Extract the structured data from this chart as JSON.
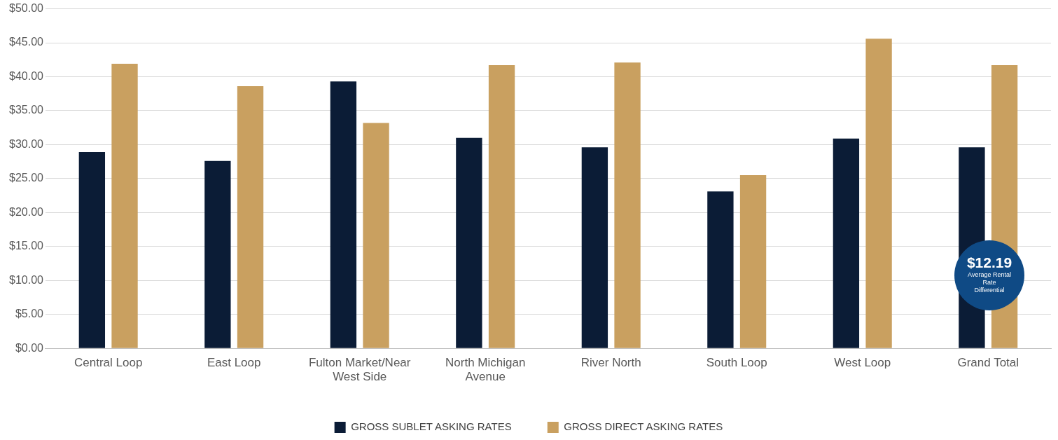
{
  "chart_data": {
    "type": "bar",
    "categories": [
      "Central Loop",
      "East Loop",
      "Fulton Market/Near West Side",
      "North Michigan Avenue",
      "River North",
      "South Loop",
      "West Loop",
      "Grand Total"
    ],
    "series": [
      {
        "name": "GROSS SUBLET ASKING RATES",
        "color": "#0b1c36",
        "values": [
          28.9,
          27.6,
          39.3,
          31.0,
          29.6,
          23.1,
          30.9,
          29.6
        ]
      },
      {
        "name": "GROSS DIRECT ASKING RATES",
        "color": "#c9a060",
        "values": [
          41.9,
          38.6,
          33.2,
          41.7,
          42.1,
          25.5,
          45.6,
          41.7
        ]
      }
    ],
    "ylim": [
      0,
      50
    ],
    "yticks": [
      {
        "value": 0,
        "label": "$0.00"
      },
      {
        "value": 5,
        "label": "$5.00"
      },
      {
        "value": 10,
        "label": "$10.00"
      },
      {
        "value": 15,
        "label": "$15.00"
      },
      {
        "value": 20,
        "label": "$20.00"
      },
      {
        "value": 25,
        "label": "$25.00"
      },
      {
        "value": 30,
        "label": "$30.00"
      },
      {
        "value": 35,
        "label": "$35.00"
      },
      {
        "value": 40,
        "label": "$40.00"
      },
      {
        "value": 45,
        "label": "$45.00"
      },
      {
        "value": 50,
        "label": "$50.00"
      }
    ],
    "grid": "y",
    "legend": "bottom",
    "annotations": [
      "$12.19",
      "Average Rental Rate Differential"
    ]
  }
}
